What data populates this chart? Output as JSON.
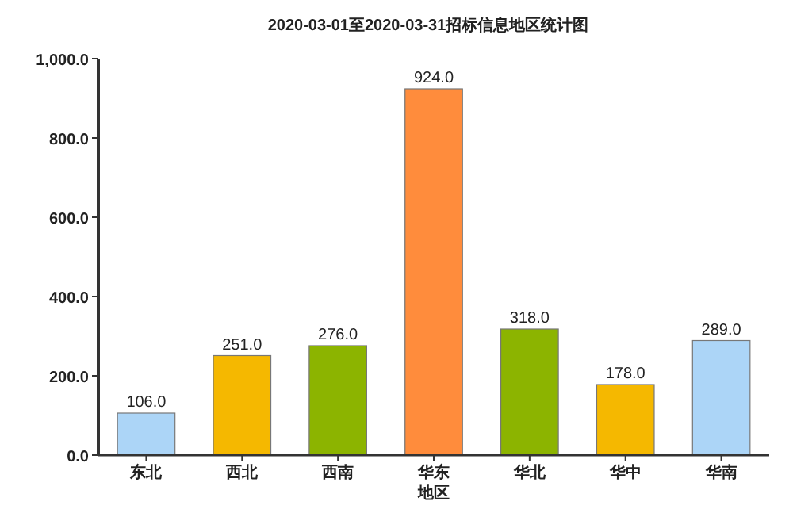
{
  "chart_data": {
    "type": "bar",
    "title": "2020-03-01至2020-03-31招标信息地区统计图",
    "xlabel": "地区",
    "categories": [
      "东北",
      "西北",
      "西南",
      "华东",
      "华北",
      "华中",
      "华南"
    ],
    "values": [
      106,
      251,
      276,
      924,
      318,
      178,
      289
    ],
    "colors": [
      "#acd5f7",
      "#f5b800",
      "#8cb400",
      "#ff8c3c",
      "#8cb400",
      "#f5b800",
      "#acd5f7"
    ],
    "value_labels": [
      "106.0",
      "251.0",
      "276.0",
      "924.0",
      "318.0",
      "178.0",
      "289.0"
    ],
    "ylim": [
      0,
      1000
    ],
    "yticks": [
      {
        "value": 0,
        "label": "0.0"
      },
      {
        "value": 200,
        "label": "200.0"
      },
      {
        "value": 400,
        "label": "400.0"
      },
      {
        "value": 600,
        "label": "600.0"
      },
      {
        "value": 800,
        "label": "800.0"
      },
      {
        "value": 1000,
        "label": "1,000.0"
      }
    ],
    "grid": false
  }
}
